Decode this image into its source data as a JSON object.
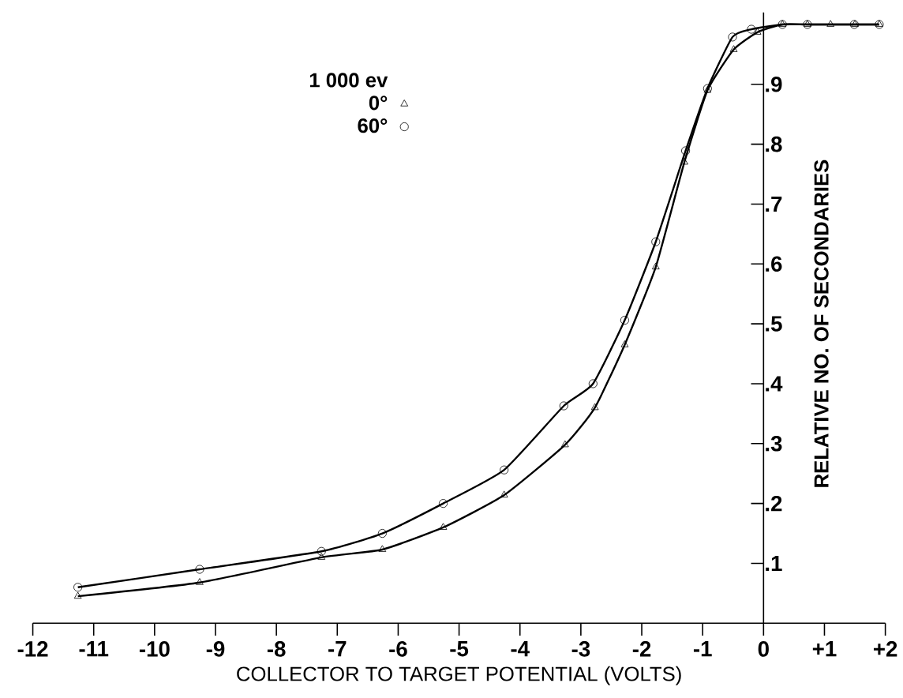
{
  "chart_data": {
    "type": "line",
    "xlabel": "COLLECTOR TO TARGET POTENTIAL (VOLTS)",
    "ylabel": "RELATIVE NO. OF SECONDARIES",
    "legend_title": "1 000 ev",
    "legend": "top left",
    "grid": false,
    "line_style": "solid",
    "xlim": [
      -12,
      2
    ],
    "ylim": [
      0,
      1.02
    ],
    "xticks": [
      -12,
      -11,
      -10,
      -9,
      -8,
      -7,
      -6,
      -5,
      -4,
      -3,
      -2,
      -1,
      0,
      {
        "value": 1,
        "label": "+1"
      },
      {
        "value": 2,
        "label": "+2"
      }
    ],
    "yticks": [
      {
        "value": 0.1,
        "label": ".1"
      },
      {
        "value": 0.2,
        "label": ".2"
      },
      {
        "value": 0.3,
        "label": ".3"
      },
      {
        "value": 0.4,
        "label": ".4"
      },
      {
        "value": 0.5,
        "label": ".5"
      },
      {
        "value": 0.6,
        "label": ".6"
      },
      {
        "value": 0.7,
        "label": ".7"
      },
      {
        "value": 0.8,
        "label": ".8"
      },
      {
        "value": 0.9,
        "label": ".9"
      }
    ],
    "series": [
      {
        "name": "0°",
        "color": "#000000",
        "marker": "triangle",
        "x": [
          -11.26,
          -9.26,
          -7.26,
          -6.26,
          -5.26,
          -4.26,
          -3.26,
          -2.77,
          -2.28,
          -1.77,
          -1.3,
          -0.92,
          -0.49,
          -0.1,
          0.31,
          0.72,
          1.1,
          1.5,
          1.9
        ],
        "values": [
          0.045,
          0.068,
          0.11,
          0.123,
          0.16,
          0.214,
          0.298,
          0.36,
          0.465,
          0.595,
          0.77,
          0.89,
          0.958,
          0.987,
          1.0,
          1.0,
          1.0,
          1.0,
          1.0
        ]
      },
      {
        "name": "60°",
        "color": "#000000",
        "marker": "circle",
        "x": [
          -11.26,
          -9.26,
          -7.26,
          -6.26,
          -5.26,
          -4.26,
          -3.28,
          -2.8,
          -2.28,
          -1.77,
          -1.28,
          -0.92,
          -0.51,
          -0.2,
          0.31,
          0.72,
          1.49,
          1.9
        ],
        "values": [
          0.06,
          0.09,
          0.12,
          0.15,
          0.2,
          0.256,
          0.363,
          0.4,
          0.506,
          0.637,
          0.789,
          0.893,
          0.979,
          0.992,
          1.0,
          1.0,
          1.0,
          1.0
        ]
      }
    ]
  }
}
